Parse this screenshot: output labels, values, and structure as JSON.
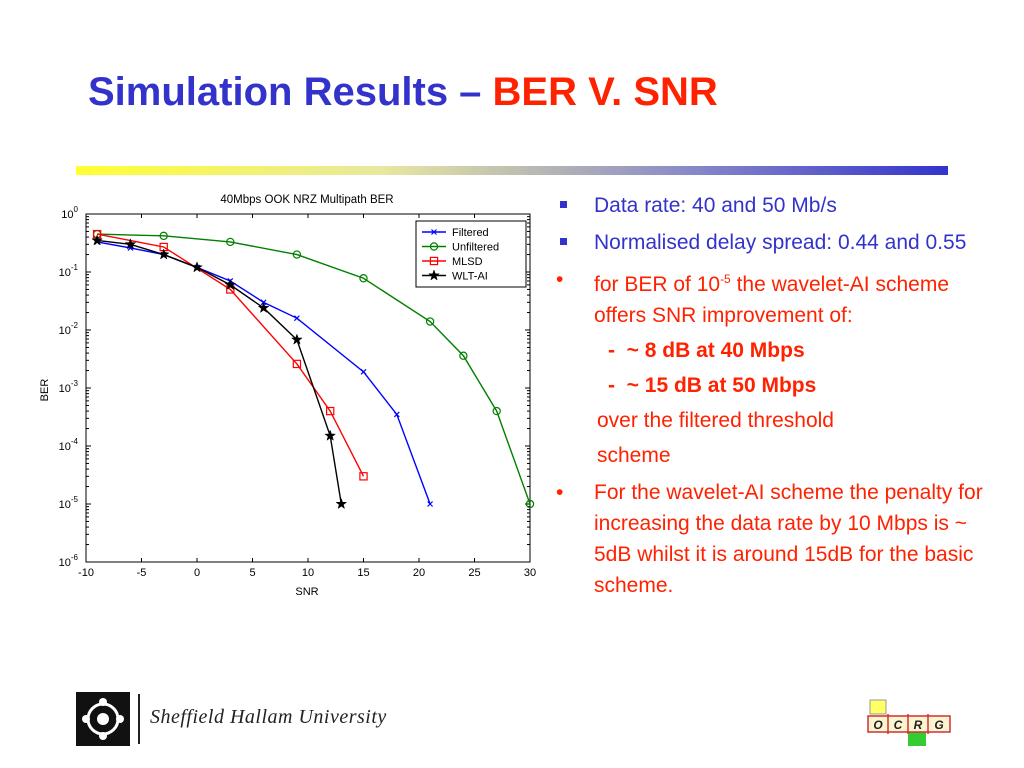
{
  "slide": {
    "title_part1": "Simulation Results – ",
    "title_part2": "BER V. SNR"
  },
  "bullets": {
    "b1": "Data rate: 40 and 50 Mb/s",
    "b2": "Normalised delay spread: 0.44 and 0.55",
    "b3_pre": "for BER of 10",
    "b3_sup": "-5",
    "b3_post": " the wavelet-AI scheme offers SNR improvement of:",
    "s1_dash": "-",
    "s1_text": "~ 8 dB at 40 Mbps",
    "s2_dash": "-",
    "s2_text": "~ 15 dB at 50 Mbps",
    "cont1": "over the filtered threshold",
    "cont2": "scheme",
    "b4": "For the wavelet-AI scheme the penalty for increasing the data rate by 10 Mbps is ~ 5dB whilst it is around 15dB for the basic scheme."
  },
  "footer": {
    "university": "Sheffield Hallam University",
    "logo_letters": [
      "O",
      "C",
      "R",
      "G"
    ]
  },
  "colors": {
    "title_blue": "#3333cc",
    "title_red": "#ff2200",
    "filtered": "#0000ff",
    "unfiltered": "#008000",
    "mlsd": "#ff0000",
    "wltai": "#000000"
  },
  "chart_data": {
    "type": "line",
    "title": "40Mbps OOK NRZ Multipath BER",
    "xlabel": "SNR",
    "ylabel": "BER",
    "xlim": [
      -10,
      30
    ],
    "ylim_exp": [
      -6,
      0
    ],
    "yscale": "log",
    "xticks": [
      "-10",
      "-5",
      "0",
      "5",
      "10",
      "15",
      "20",
      "25",
      "30"
    ],
    "yticks": [
      {
        "base": "10",
        "exp": "0"
      },
      {
        "base": "10",
        "exp": "-1"
      },
      {
        "base": "10",
        "exp": "-2"
      },
      {
        "base": "10",
        "exp": "-3"
      },
      {
        "base": "10",
        "exp": "-4"
      },
      {
        "base": "10",
        "exp": "-5"
      },
      {
        "base": "10",
        "exp": "-6"
      }
    ],
    "legend_position": "top-right",
    "grid": false,
    "series": [
      {
        "name": "Filtered",
        "marker": "x",
        "color": "#0000ff",
        "x": [
          -9,
          -6,
          -3,
          0,
          3,
          6,
          9,
          15,
          18,
          21
        ],
        "y": [
          0.33,
          0.26,
          0.2,
          0.12,
          0.07,
          0.03,
          0.016,
          0.0019,
          0.00035,
          1e-05
        ]
      },
      {
        "name": "Unfiltered",
        "marker": "o",
        "color": "#008000",
        "x": [
          -9,
          -3,
          3,
          9,
          15,
          21,
          24,
          27,
          30
        ],
        "y": [
          0.45,
          0.42,
          0.33,
          0.2,
          0.078,
          0.014,
          0.0036,
          0.0004,
          1e-05
        ]
      },
      {
        "name": "MLSD",
        "marker": "s",
        "color": "#ff0000",
        "x": [
          -9,
          -3,
          3,
          9,
          12,
          15
        ],
        "y": [
          0.45,
          0.27,
          0.05,
          0.0026,
          0.0004,
          3e-05
        ]
      },
      {
        "name": "WLT-AI",
        "marker": "*",
        "color": "#000000",
        "x": [
          -9,
          -6,
          -3,
          0,
          3,
          6,
          9,
          12,
          13
        ],
        "y": [
          0.35,
          0.3,
          0.2,
          0.12,
          0.06,
          0.024,
          0.0068,
          0.00015,
          1e-05
        ]
      }
    ]
  }
}
